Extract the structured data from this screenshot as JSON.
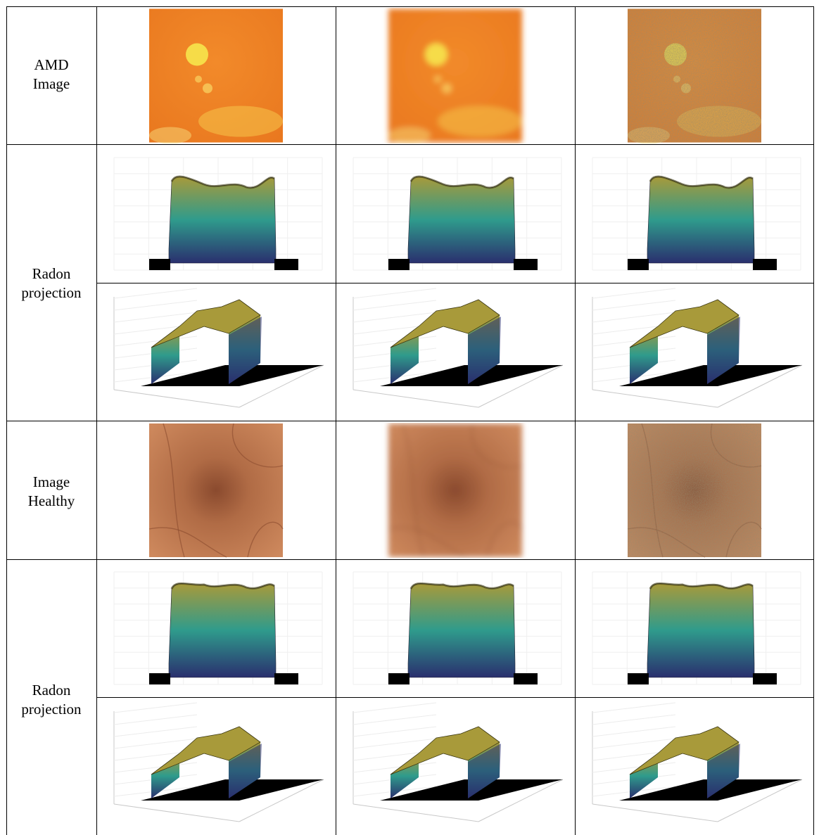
{
  "rows": [
    {
      "label_line1": "AMD",
      "label_line2": "Image"
    },
    {
      "label_line1": "Radon",
      "label_line2": "projection"
    },
    {
      "label_line1": "Image",
      "label_line2": "Healthy"
    },
    {
      "label_line1": "Radon",
      "label_line2": "projection"
    }
  ],
  "palette": {
    "amd_fundus": "#e9781f",
    "amd_lesion": "#f6e04a",
    "healthy_fundus": "#cf8a5e",
    "healthy_macula": "#8a4a2e",
    "surface_top": "#a89a3a",
    "surface_mid": "#2f9b8c",
    "surface_base": "#2a2f6e",
    "floor": "#000000"
  },
  "icons": [
    "fundus-image",
    "radon-surface-plot"
  ]
}
